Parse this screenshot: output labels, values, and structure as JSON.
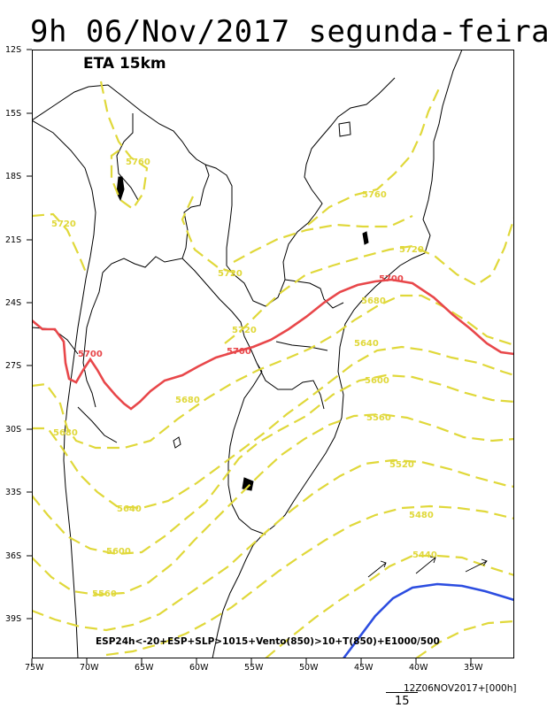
{
  "title": "9h 06/Nov/2017 segunda-feira",
  "model_label": "ETA 15km",
  "legend": "ESP24h<-20+ESP+SLP>1015+Vento(850)>10+T(850)+E1000/500",
  "lat_ticks": [
    "12S",
    "15S",
    "18S",
    "21S",
    "24S",
    "27S",
    "30S",
    "33S",
    "36S",
    "39S"
  ],
  "lon_ticks": [
    "75W",
    "70W",
    "65W",
    "60W",
    "55W",
    "50W",
    "45W",
    "40W",
    "35W"
  ],
  "footer": {
    "stamp": "12Z06NOV2017+[000h]",
    "reference_vector": "15"
  },
  "colors": {
    "thickness_contour": "#e0d83a",
    "contour_5700": "#e8474a",
    "contour_blue": "#2c4de0",
    "borders": "#000000"
  },
  "contour_labels": {
    "c5760_a": "5760",
    "c5760_b": "5760",
    "c5720_a": "5720",
    "c5720_b": "5720",
    "c5720_c": "5720",
    "c5700_a": "5700",
    "c5700_b": "5700",
    "c5700_c": "5700",
    "c5680_a": "5680",
    "c5680_b": "5680",
    "c5680_c": "5680",
    "c5640_a": "5640",
    "c5640_b": "5640",
    "c5600_a": "5600",
    "c5600_b": "5600",
    "c5560_a": "5560",
    "c5560_b": "5560",
    "c5520": "5520",
    "c5480": "5480",
    "c5440": "5440"
  }
}
